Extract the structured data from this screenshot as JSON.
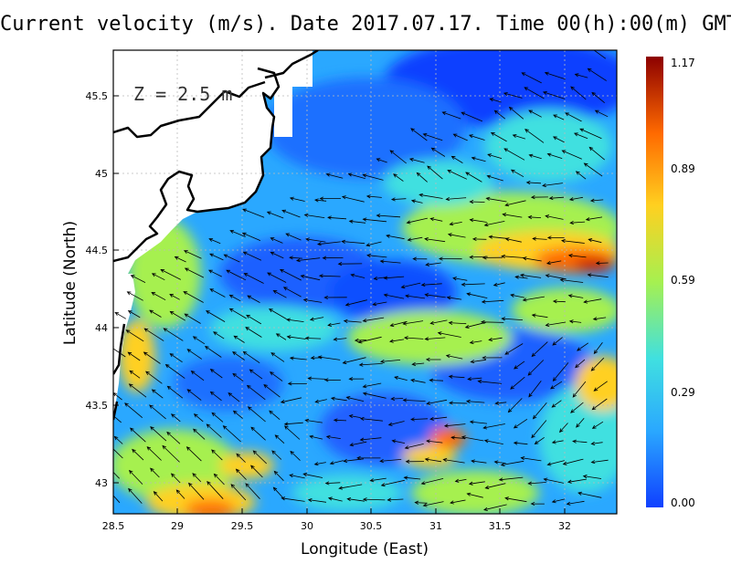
{
  "title": "Current velocity (m/s). Date 2017.07.17. Time 00(h):00(m) GMT",
  "depth_label": "Z = 2.5 m",
  "xlabel": "Longitude (East)",
  "ylabel": "Latitude (North)",
  "x_ticks": [
    "28.5",
    "29",
    "29.5",
    "30",
    "30.5",
    "31",
    "31.5",
    "32"
  ],
  "y_ticks": [
    "43",
    "43.5",
    "44",
    "44.5",
    "45",
    "45.5"
  ],
  "colorbar": {
    "ticks": [
      "0.00",
      "0.29",
      "0.59",
      "0.89",
      "1.17"
    ],
    "min": 0.0,
    "max": 1.17,
    "colors": [
      "#1040ff",
      "#2aa8ff",
      "#40e0e0",
      "#a6f050",
      "#ffd020",
      "#ff6a00",
      "#8c0000"
    ]
  },
  "map": {
    "lon_range": [
      28.5,
      32.4
    ],
    "lat_range": [
      42.8,
      45.8
    ],
    "land_color": "#ffffff",
    "coast_color": "#000000",
    "grid": "dotted"
  }
}
